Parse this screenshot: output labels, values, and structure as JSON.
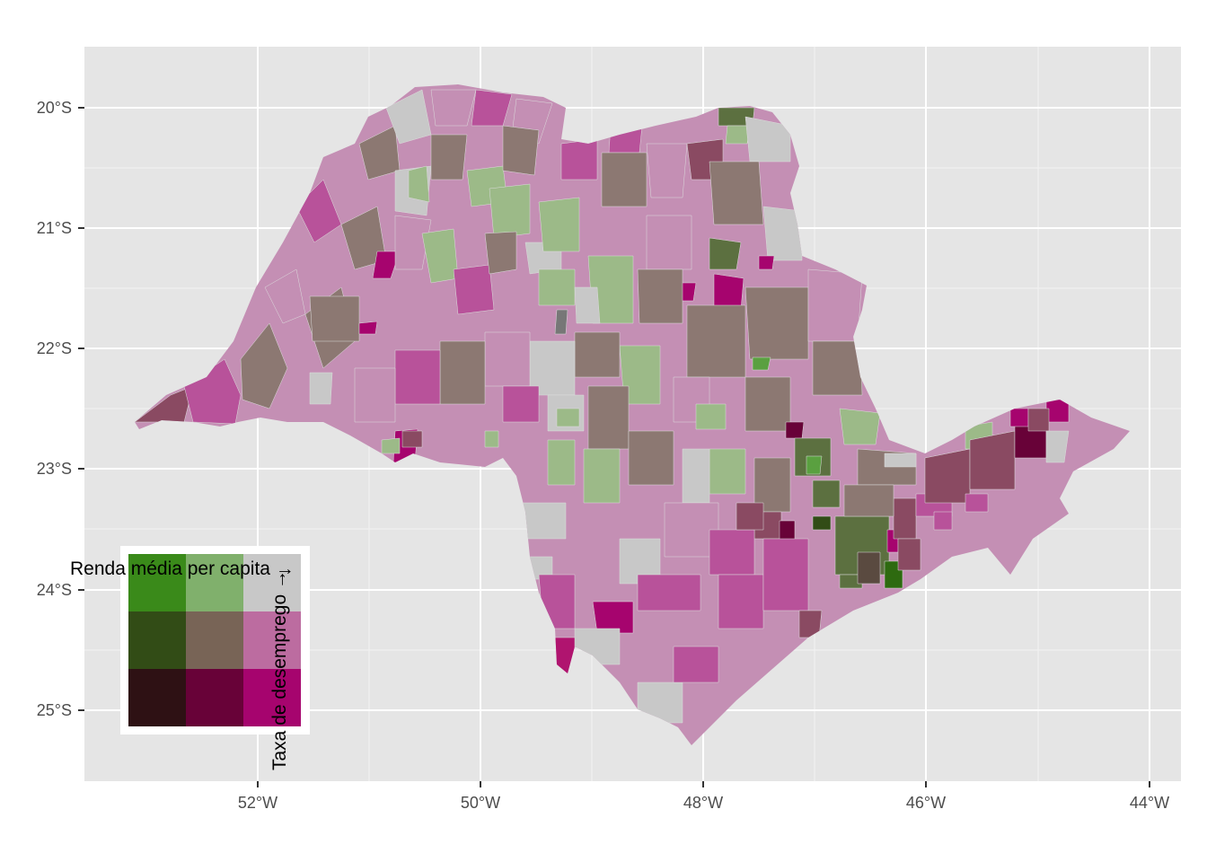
{
  "map": {
    "y_axis": {
      "ticks": [
        "20°S",
        "21°S",
        "22°S",
        "23°S",
        "24°S",
        "25°S"
      ],
      "values": [
        -20,
        -21,
        -22,
        -23,
        -24,
        -25
      ]
    },
    "x_axis": {
      "ticks": [
        "52°W",
        "50°W",
        "48°W",
        "46°W",
        "44°W"
      ],
      "values": [
        -52,
        -50,
        -48,
        -46,
        -44
      ]
    },
    "background_color": "#e5e5e5",
    "grid_color": "#ffffff",
    "no_data_color": "#c8c8c8"
  },
  "legend": {
    "x_label": "Renda média per capita →",
    "y_label": "Taxa de desemprego →",
    "palette": [
      [
        "#3a8a1a",
        "#80b06c",
        "#c8c8c8"
      ],
      [
        "#324c16",
        "#786456",
        "#bc6ca0"
      ],
      [
        "#2e1114",
        "#680238",
        "#a6046e"
      ]
    ]
  }
}
